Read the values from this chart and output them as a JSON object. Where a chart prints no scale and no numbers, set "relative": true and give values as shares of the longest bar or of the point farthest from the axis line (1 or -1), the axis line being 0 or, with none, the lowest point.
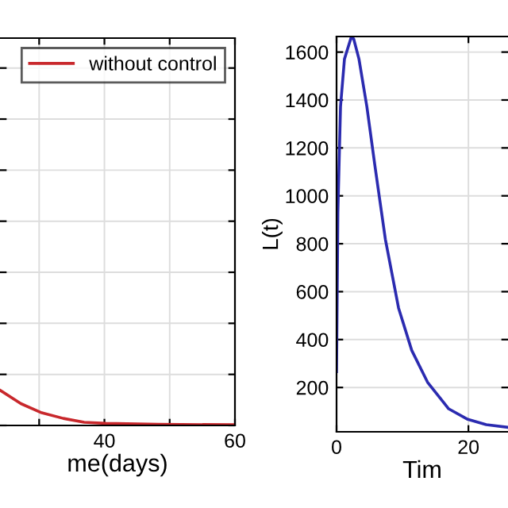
{
  "chart_data": [
    {
      "type": "line",
      "relative": true,
      "xlabel": "me(days)",
      "xlim": [
        24,
        60
      ],
      "xticks": [
        {
          "value": 30,
          "label": null
        },
        40,
        {
          "value": 50,
          "label": null
        },
        60
      ],
      "tick_labels": "x",
      "grid": true,
      "legend": "top right",
      "series": [
        {
          "name": "without control",
          "color": "#c8282c",
          "x": [
            24,
            27.2,
            30.4,
            33.7,
            36.9,
            40.2,
            48.3,
            59.7
          ],
          "values": [
            1,
            0.62,
            0.36,
            0.2,
            0.09,
            0.06,
            0.03,
            0.02
          ]
        }
      ]
    },
    {
      "type": "line",
      "xlabel": "Tim",
      "ylabel": "L(t)",
      "xlim": [
        0,
        26
      ],
      "ylim": [
        15,
        1665
      ],
      "xticks": [
        0,
        20
      ],
      "yticks": [
        200,
        400,
        600,
        800,
        1000,
        1200,
        1400,
        1600
      ],
      "grid": true,
      "series": [
        {
          "color": "#2b2bb0",
          "x": [
            0,
            0.2,
            0.6,
            1.2,
            2.2,
            2.6,
            3.4,
            4.6,
            5.8,
            7.4,
            9.4,
            11.4,
            13.8,
            17,
            19.9,
            22.7,
            25.9
          ],
          "values": [
            266,
            930,
            1372,
            1571,
            1660,
            1655,
            1571,
            1372,
            1129,
            819,
            532,
            355,
            222,
            111,
            67,
            45,
            34
          ]
        }
      ]
    }
  ]
}
